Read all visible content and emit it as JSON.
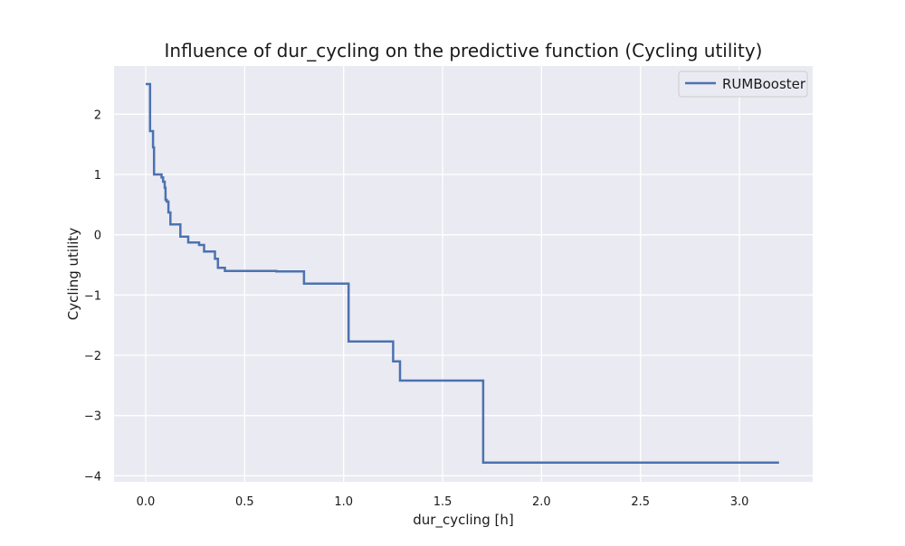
{
  "chart_data": {
    "type": "line",
    "step": true,
    "title": "Influence of dur_cycling on the predictive function (Cycling utility)",
    "xlabel": "dur_cycling [h]",
    "ylabel": "Cycling utility",
    "xlim": [
      -0.16,
      3.37
    ],
    "ylim": [
      -4.1,
      2.8
    ],
    "xticks": [
      0.0,
      0.5,
      1.0,
      1.5,
      2.0,
      2.5,
      3.0
    ],
    "xtick_labels": [
      "0.0",
      "0.5",
      "1.0",
      "1.5",
      "2.0",
      "2.5",
      "3.0"
    ],
    "yticks": [
      2,
      1,
      0,
      -1,
      -2,
      -3,
      -4
    ],
    "ytick_labels": [
      "2",
      "1",
      "0",
      "−1",
      "−2",
      "−3",
      "−4"
    ],
    "grid": true,
    "legend_position": "top-right",
    "series": [
      {
        "name": "RUMBooster",
        "color": "#4c72b0",
        "x": [
          0.0,
          0.022,
          0.037,
          0.042,
          0.08,
          0.088,
          0.096,
          0.1,
          0.106,
          0.115,
          0.125,
          0.175,
          0.215,
          0.27,
          0.295,
          0.35,
          0.365,
          0.4,
          0.66,
          0.8,
          1.025,
          1.25,
          1.285,
          1.705,
          3.2
        ],
        "y": [
          2.5,
          1.72,
          1.45,
          1.0,
          0.95,
          0.88,
          0.78,
          0.58,
          0.55,
          0.37,
          0.17,
          -0.03,
          -0.13,
          -0.17,
          -0.28,
          -0.4,
          -0.55,
          -0.6,
          -0.61,
          -0.81,
          -1.77,
          -2.1,
          -2.42,
          -3.78,
          -3.78
        ]
      }
    ]
  }
}
